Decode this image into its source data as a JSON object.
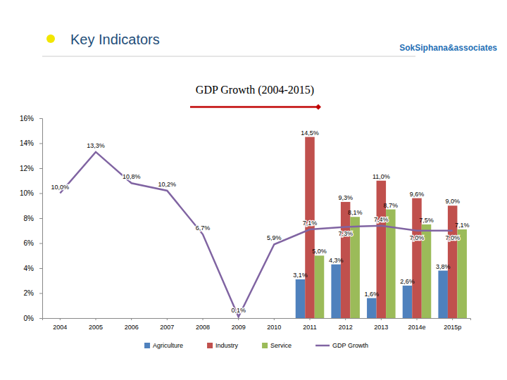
{
  "header": {
    "title": "Key Indicators",
    "logo": "SokSiphana&associates"
  },
  "chart_data": {
    "type": "bar",
    "title": "GDP Growth (2004-2015)",
    "categories": [
      "2004",
      "2005",
      "2006",
      "2007",
      "2008",
      "2009",
      "2010",
      "2011",
      "2012",
      "2013",
      "2014e",
      "2015p"
    ],
    "series": [
      {
        "name": "Agriculture",
        "type": "bar",
        "color": "#4f81bd",
        "values": [
          null,
          null,
          null,
          null,
          null,
          null,
          null,
          3.1,
          4.3,
          1.6,
          2.6,
          3.8
        ],
        "value_labels": [
          null,
          null,
          null,
          null,
          null,
          null,
          null,
          "3,1%",
          "4,3%",
          "1,6%",
          "2,6%",
          "3,8%"
        ]
      },
      {
        "name": "Industry",
        "type": "bar",
        "color": "#c0504d",
        "values": [
          null,
          null,
          null,
          null,
          null,
          null,
          null,
          14.5,
          9.3,
          11.0,
          9.6,
          9.0
        ],
        "value_labels": [
          null,
          null,
          null,
          null,
          null,
          null,
          null,
          "14,5%",
          "9,3%",
          "11,0%",
          "9,6%",
          "9,0%"
        ]
      },
      {
        "name": "Service",
        "type": "bar",
        "color": "#9bbb59",
        "values": [
          null,
          null,
          null,
          null,
          null,
          null,
          null,
          5.0,
          8.1,
          8.7,
          7.5,
          7.1
        ],
        "value_labels": [
          null,
          null,
          null,
          null,
          null,
          null,
          null,
          "5,0%",
          "8,1%",
          "8,7%",
          "7,5%",
          "7,1%"
        ]
      },
      {
        "name": "GDP Growth",
        "type": "line",
        "color": "#8064a2",
        "values": [
          10.0,
          13.3,
          10.8,
          10.2,
          6.7,
          0.1,
          5.9,
          7.1,
          7.3,
          7.4,
          7.0,
          7.0
        ],
        "value_labels": [
          "10,0%",
          "13,3%",
          "10,8%",
          "10,2%",
          "6,7%",
          "0,1%",
          "5,9%",
          "7,1%",
          "7,3%",
          "7,4%",
          "7,0%",
          "7,0%"
        ]
      }
    ],
    "ylim": [
      0,
      16
    ],
    "yticks": [
      {
        "value": 0,
        "label": "0%"
      },
      {
        "value": 2,
        "label": "2%"
      },
      {
        "value": 4,
        "label": "4%"
      },
      {
        "value": 6,
        "label": "6%"
      },
      {
        "value": 8,
        "label": "8%"
      },
      {
        "value": 10,
        "label": "10%"
      },
      {
        "value": 12,
        "label": "12%"
      },
      {
        "value": 14,
        "label": "14%"
      },
      {
        "value": 16,
        "label": "16%"
      }
    ],
    "grid": false,
    "legend": "bottom",
    "data_labels": true
  }
}
